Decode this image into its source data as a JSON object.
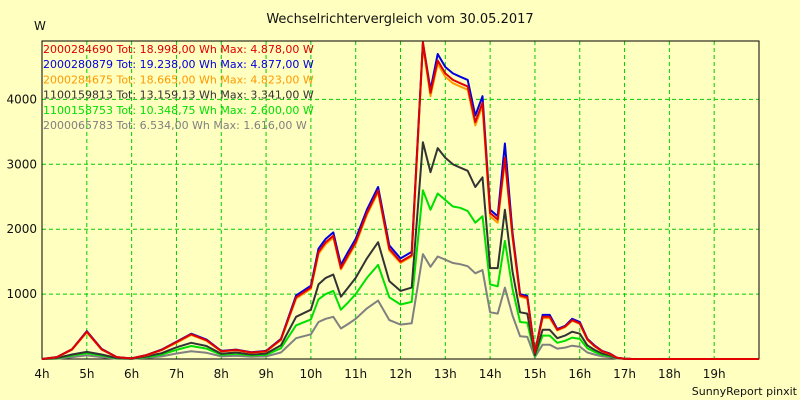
{
  "chart_data": {
    "type": "line",
    "title": "Wechselrichtervergleich vom 30.05.2017",
    "ylabel": "W",
    "xlabel": "",
    "x_tick_labels": [
      "4h",
      "5h",
      "6h",
      "7h",
      "8h",
      "9h",
      "10h",
      "11h",
      "12h",
      "13h",
      "14h",
      "15h",
      "16h",
      "17h",
      "18h",
      "19h"
    ],
    "y_ticks": [
      1000,
      2000,
      3000,
      4000
    ],
    "xlim": [
      4,
      20
    ],
    "ylim": [
      0,
      4900
    ],
    "grid": true,
    "legend_position": "top-left",
    "credit": "SunnyReport pinxit",
    "x": [
      4,
      4.33,
      4.67,
      5,
      5.33,
      5.67,
      6,
      6.33,
      6.67,
      7,
      7.33,
      7.67,
      8,
      8.33,
      8.67,
      9,
      9.33,
      9.67,
      10,
      10.17,
      10.33,
      10.5,
      10.67,
      10.83,
      11,
      11.25,
      11.5,
      11.75,
      12,
      12.25,
      12.5,
      12.67,
      12.83,
      13,
      13.17,
      13.33,
      13.5,
      13.67,
      13.83,
      14,
      14.17,
      14.33,
      14.5,
      14.67,
      14.83,
      15,
      15.17,
      15.33,
      15.5,
      15.67,
      15.83,
      16,
      16.17,
      16.33,
      16.5,
      16.67,
      16.83,
      17,
      17.17,
      17.33,
      17.5,
      17.67,
      17.83,
      18,
      18.17,
      18.33,
      18.5,
      18.67,
      18.83,
      19,
      19.33,
      19.67,
      20
    ],
    "series": [
      {
        "name": "2000284690",
        "legend": "2000284690 Tot: 18.998,00 Wh Max: 4.878,00 W",
        "color": "#e00000",
        "values": [
          0,
          30,
          150,
          420,
          150,
          30,
          10,
          60,
          140,
          260,
          380,
          290,
          120,
          140,
          100,
          120,
          300,
          950,
          1100,
          1650,
          1800,
          1900,
          1400,
          1600,
          1800,
          2250,
          2600,
          1700,
          1500,
          1600,
          4878,
          4100,
          4600,
          4400,
          4300,
          4250,
          4200,
          3650,
          3950,
          2250,
          2150,
          3100,
          1900,
          980,
          950,
          100,
          650,
          650,
          450,
          500,
          600,
          550,
          300,
          200,
          120,
          80,
          20,
          5,
          0,
          0,
          0,
          0,
          0,
          0,
          0,
          0,
          0,
          0,
          0,
          0,
          0,
          0,
          0
        ]
      },
      {
        "name": "2000280879",
        "legend": "2000280879 Tot: 19.238,00 Wh Max: 4.877,00 W",
        "color": "#0000e0",
        "values": [
          0,
          30,
          150,
          430,
          155,
          30,
          10,
          60,
          145,
          265,
          390,
          300,
          125,
          145,
          105,
          125,
          310,
          980,
          1130,
          1700,
          1850,
          1950,
          1450,
          1650,
          1850,
          2300,
          2650,
          1750,
          1550,
          1650,
          4877,
          4150,
          4700,
          4500,
          4400,
          4350,
          4300,
          3750,
          4050,
          2300,
          2200,
          3320,
          1950,
          1000,
          970,
          100,
          680,
          680,
          460,
          510,
          620,
          570,
          310,
          210,
          125,
          85,
          20,
          5,
          0,
          0,
          0,
          0,
          0,
          0,
          0,
          0,
          0,
          0,
          0,
          0,
          0,
          0,
          0
        ]
      },
      {
        "name": "2000284675",
        "legend": "2000284675 Tot: 18.665,00 Wh Max: 4.823,00 W",
        "color": "#ff9900",
        "values": [
          0,
          25,
          140,
          410,
          145,
          28,
          10,
          55,
          135,
          250,
          370,
          280,
          115,
          135,
          95,
          115,
          290,
          930,
          1080,
          1620,
          1770,
          1870,
          1380,
          1570,
          1770,
          2220,
          2570,
          1670,
          1480,
          1580,
          4823,
          4050,
          4550,
          4350,
          4250,
          4200,
          4150,
          3600,
          3900,
          2200,
          2100,
          3050,
          1870,
          960,
          930,
          100,
          630,
          630,
          440,
          490,
          590,
          540,
          295,
          195,
          115,
          75,
          18,
          5,
          0,
          0,
          0,
          0,
          0,
          0,
          0,
          0,
          0,
          0,
          0,
          0,
          0,
          0,
          0
        ]
      },
      {
        "name": "1100159813",
        "legend": "1100159813 Tot: 13.159,13 Wh Max: 3.341,00 W",
        "color": "#333333",
        "values": [
          0,
          15,
          70,
          110,
          70,
          15,
          5,
          40,
          90,
          180,
          250,
          200,
          80,
          100,
          70,
          85,
          210,
          650,
          760,
          1150,
          1250,
          1300,
          960,
          1100,
          1250,
          1550,
          1800,
          1200,
          1050,
          1100,
          3341,
          2880,
          3250,
          3100,
          3000,
          2950,
          2900,
          2650,
          2800,
          1400,
          1400,
          2300,
          1350,
          720,
          700,
          60,
          450,
          450,
          320,
          360,
          420,
          390,
          210,
          140,
          85,
          55,
          15,
          5,
          0,
          0,
          0,
          0,
          0,
          0,
          0,
          0,
          0,
          0,
          0,
          0,
          0,
          0,
          0
        ]
      },
      {
        "name": "1100158753",
        "legend": "1100158753 Tot: 10.348,75 Wh Max: 2.600,00 W",
        "color": "#00e000",
        "values": [
          0,
          10,
          55,
          90,
          55,
          10,
          5,
          30,
          70,
          140,
          200,
          160,
          65,
          80,
          55,
          65,
          165,
          520,
          610,
          920,
          1000,
          1050,
          760,
          870,
          1000,
          1250,
          1450,
          950,
          840,
          880,
          2600,
          2300,
          2550,
          2450,
          2350,
          2330,
          2280,
          2100,
          2200,
          1150,
          1120,
          1820,
          1080,
          570,
          560,
          45,
          360,
          360,
          250,
          280,
          330,
          310,
          165,
          110,
          65,
          45,
          12,
          5,
          0,
          0,
          0,
          0,
          0,
          0,
          0,
          0,
          0,
          0,
          0,
          0,
          0,
          0,
          0
        ]
      },
      {
        "name": "2000065783",
        "legend": "2000065783 Tot: 6.534,00 Wh Max: 1.616,00 W",
        "color": "#808080",
        "values": [
          0,
          5,
          30,
          55,
          30,
          5,
          3,
          18,
          40,
          85,
          120,
          95,
          40,
          50,
          35,
          40,
          100,
          320,
          380,
          570,
          620,
          650,
          470,
          540,
          620,
          780,
          900,
          600,
          530,
          550,
          1616,
          1420,
          1580,
          1530,
          1480,
          1460,
          1430,
          1320,
          1370,
          720,
          700,
          1100,
          670,
          350,
          340,
          30,
          220,
          220,
          160,
          175,
          205,
          190,
          100,
          70,
          40,
          28,
          8,
          3,
          0,
          0,
          0,
          0,
          0,
          0,
          0,
          0,
          0,
          0,
          0,
          0,
          0,
          0,
          0
        ]
      }
    ]
  }
}
